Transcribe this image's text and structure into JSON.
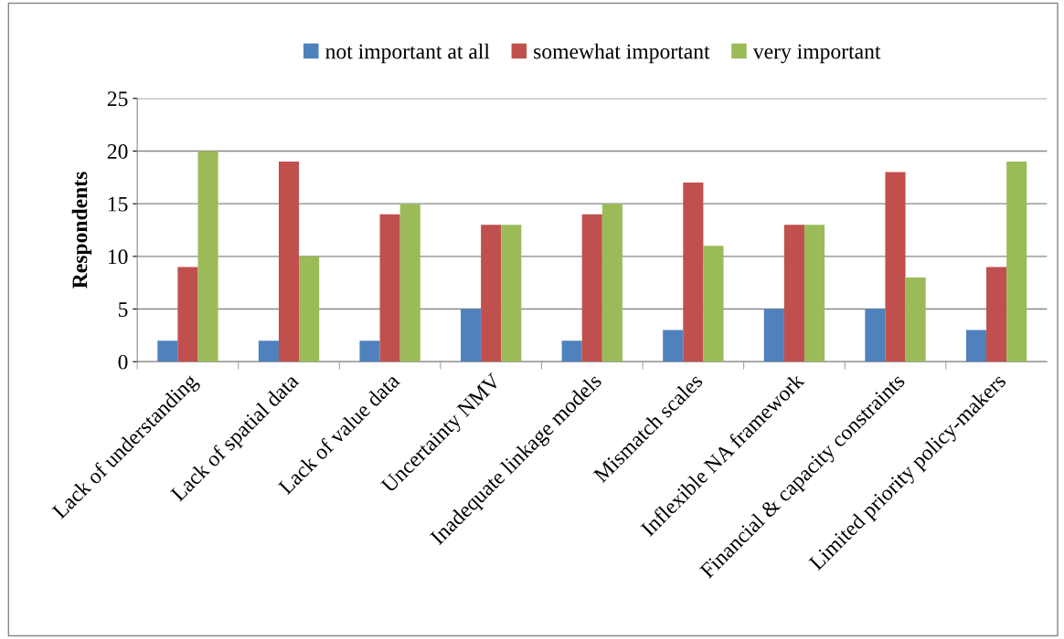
{
  "chart_data": {
    "type": "bar",
    "ylabel": "Respondents",
    "categories": [
      "Lack of understanding",
      "Lack of spatial data",
      "Lack of value data",
      "Uncertainty NMV",
      "Inadequate linkage models",
      "Mismatch scales",
      "Inflexible NA framework",
      "Financial & capacity constraints",
      "Limited priority policy-makers"
    ],
    "series": [
      {
        "name": "not important at all",
        "color": "#4f81bd",
        "values": [
          2,
          2,
          2,
          5,
          2,
          3,
          5,
          5,
          3
        ]
      },
      {
        "name": "somewhat important",
        "color": "#c0504d",
        "values": [
          9,
          19,
          14,
          13,
          14,
          17,
          13,
          18,
          9
        ]
      },
      {
        "name": "very important",
        "color": "#9bbb59",
        "values": [
          20,
          10,
          15,
          13,
          15,
          11,
          13,
          8,
          19
        ]
      }
    ],
    "ylim": [
      0,
      25
    ],
    "yticks": [
      0,
      5,
      10,
      15,
      20,
      25
    ],
    "grid": "y",
    "legend": "top"
  }
}
